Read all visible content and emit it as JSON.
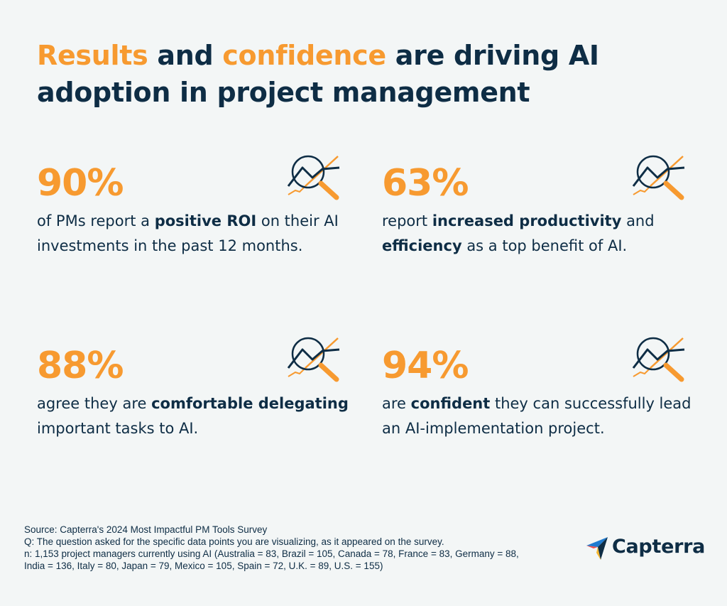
{
  "title": {
    "part1": "Results",
    "part2": " and ",
    "part3": "confidence",
    "part4": " are driving AI",
    "part5": "adoption in project management"
  },
  "chart_data": {
    "type": "table",
    "stats": [
      {
        "value": "90%",
        "pre": "of PMs report a ",
        "bold": "positive ROI",
        "post": " on their AI investments in the past 12 months."
      },
      {
        "value": "63%",
        "pre": "report ",
        "bold": "increased productivity",
        "post": " and ",
        "bold2": "efficiency",
        "post2": " as a top benefit of AI."
      },
      {
        "value": "88%",
        "pre": "agree they are ",
        "bold": "comfortable delegating",
        "post": " important tasks to AI."
      },
      {
        "value": "94%",
        "pre": "are ",
        "bold": "confident",
        "post": " they can successfully lead an AI-implementation project."
      }
    ]
  },
  "icons": {
    "stat_icon": "magnifier-trend-chart-icon",
    "logo_icon": "capterra-arrow-icon"
  },
  "source": {
    "line1": "Source: Capterra's 2024 Most Impactful PM Tools Survey",
    "line2": "Q: The question asked for the specific data points you are visualizing, as it appeared on the survey.",
    "line3": "n: 1,153 project managers currently using AI (Australia = 83, Brazil = 105, Canada = 78, France = 83, Germany = 88,",
    "line4": "India = 136, Italy = 80, Japan = 79, Mexico = 105, Spain = 72, U.K. = 89, U.S. = 155)"
  },
  "logo": {
    "text": "Capterra"
  },
  "colors": {
    "accent": "#f79a30",
    "navy": "#0e2d45",
    "background": "#f3f6f6",
    "logo_blue": "#1f7bd0",
    "logo_red": "#ee4c4c"
  }
}
